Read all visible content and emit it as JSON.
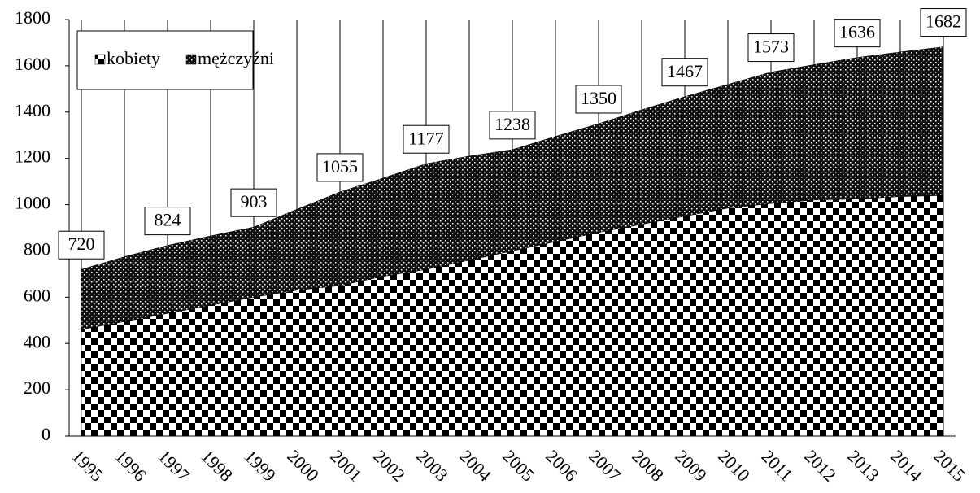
{
  "chart_data": {
    "type": "stacked-area",
    "x": [
      1995,
      1996,
      1997,
      1998,
      1999,
      2000,
      2001,
      2002,
      2003,
      2004,
      2005,
      2006,
      2007,
      2008,
      2009,
      2010,
      2011,
      2012,
      2013,
      2014,
      2015
    ],
    "xlim": [
      1995,
      2015
    ],
    "series": [
      {
        "name": "kobiety",
        "color": "#000000",
        "pattern": "checker",
        "values": [
          460,
          495,
          530,
          565,
          600,
          630,
          650,
          690,
          720,
          760,
          800,
          840,
          880,
          915,
          950,
          985,
          1005,
          1020,
          1025,
          1035,
          1040
        ]
      },
      {
        "name": "mężczyźni",
        "color": "#000000",
        "pattern": "dots",
        "values": [
          260,
          280,
          294,
          300,
          303,
          350,
          405,
          425,
          457,
          450,
          438,
          455,
          470,
          495,
          517,
          535,
          568,
          585,
          611,
          625,
          642
        ]
      }
    ],
    "total_labels": {
      "x": [
        1995,
        1997,
        1999,
        2001,
        2003,
        2005,
        2007,
        2009,
        2011,
        2013,
        2015
      ],
      "values": [
        720,
        824,
        903,
        1055,
        1177,
        1238,
        1350,
        1467,
        1573,
        1636,
        1682
      ]
    },
    "ylim": [
      0,
      1800
    ],
    "yticks": [
      0,
      200,
      400,
      600,
      800,
      1000,
      1200,
      1400,
      1600,
      1800
    ],
    "grid": "x",
    "legend": "top-left"
  }
}
